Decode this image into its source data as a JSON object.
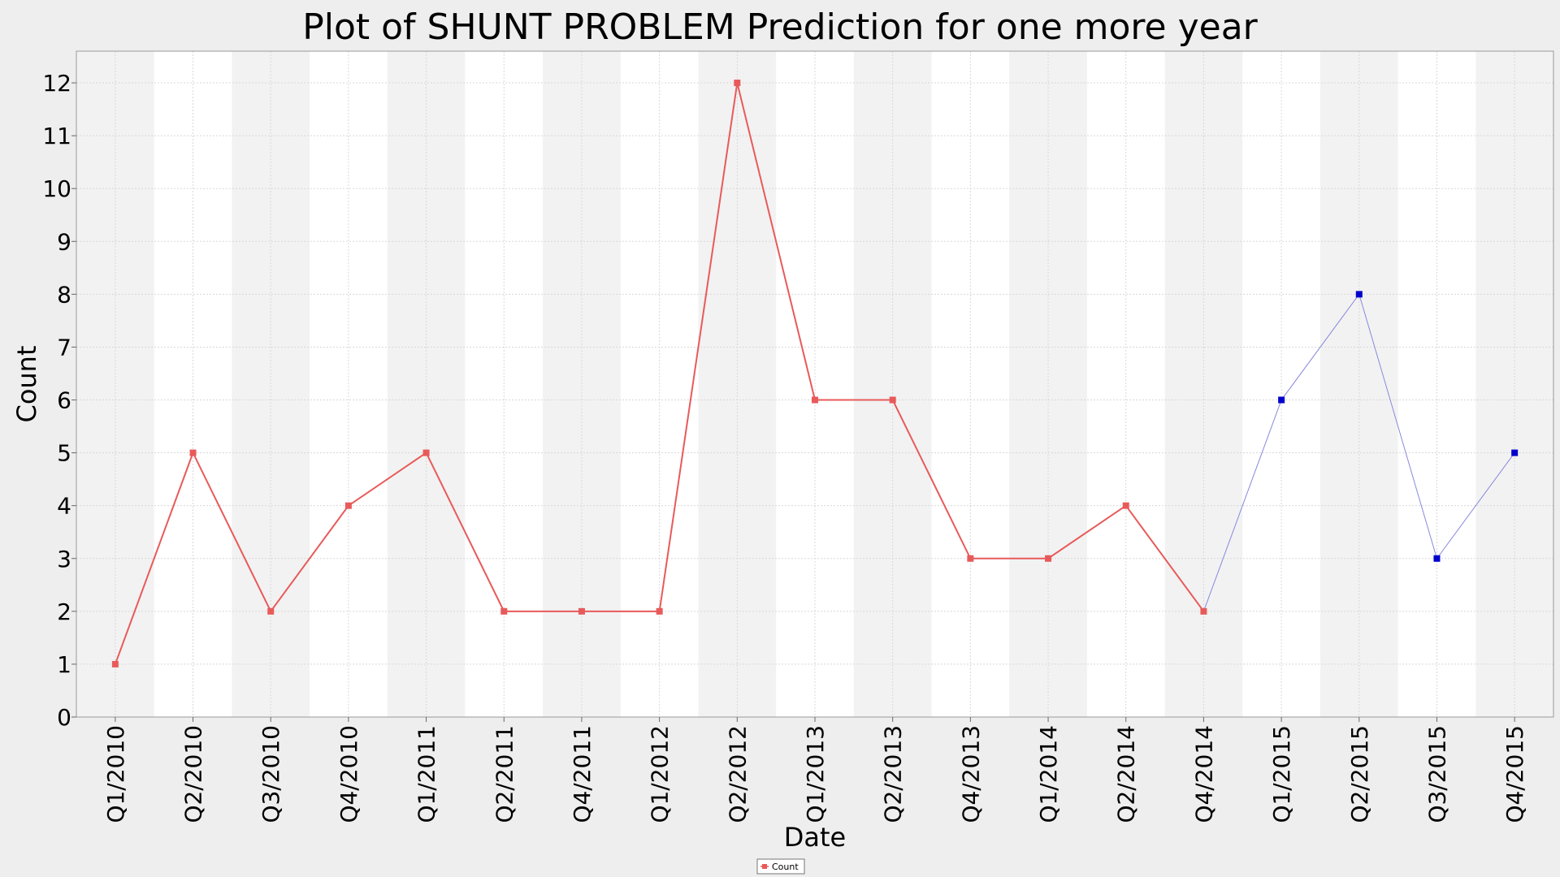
{
  "chart_data": {
    "type": "line",
    "title": "Plot of SHUNT PROBLEM Prediction for one more year",
    "xlabel": "Date",
    "ylabel": "Count",
    "ylim": [
      0,
      12.6
    ],
    "yticks": [
      0,
      1,
      2,
      3,
      4,
      5,
      6,
      7,
      8,
      9,
      10,
      11,
      12
    ],
    "categories": [
      "Q1/2010",
      "Q2/2010",
      "Q3/2010",
      "Q4/2010",
      "Q1/2011",
      "Q2/2011",
      "Q4/2011",
      "Q1/2012",
      "Q2/2012",
      "Q1/2013",
      "Q2/2013",
      "Q4/2013",
      "Q1/2014",
      "Q2/2014",
      "Q4/2014",
      "Q1/2015",
      "Q2/2015",
      "Q3/2015",
      "Q4/2015"
    ],
    "series": [
      {
        "name": "Count",
        "color": "#e85a5a",
        "x": [
          "Q1/2010",
          "Q2/2010",
          "Q3/2010",
          "Q4/2010",
          "Q1/2011",
          "Q2/2011",
          "Q4/2011",
          "Q1/2012",
          "Q2/2012",
          "Q1/2013",
          "Q2/2013",
          "Q4/2013",
          "Q1/2014",
          "Q2/2014",
          "Q4/2014"
        ],
        "values": [
          1,
          5,
          2,
          4,
          5,
          2,
          2,
          2,
          12,
          6,
          6,
          3,
          3,
          4,
          2
        ]
      },
      {
        "color": "#0000cc",
        "x": [
          "Q4/2014",
          "Q1/2015",
          "Q2/2015",
          "Q3/2015",
          "Q4/2015"
        ],
        "values": [
          2,
          6,
          8,
          3,
          5
        ]
      }
    ],
    "grid": true,
    "alternating_bands": true,
    "legend_position": "bottom-center",
    "legend": [
      {
        "label": "Count",
        "color": "#e85a5a"
      }
    ]
  }
}
